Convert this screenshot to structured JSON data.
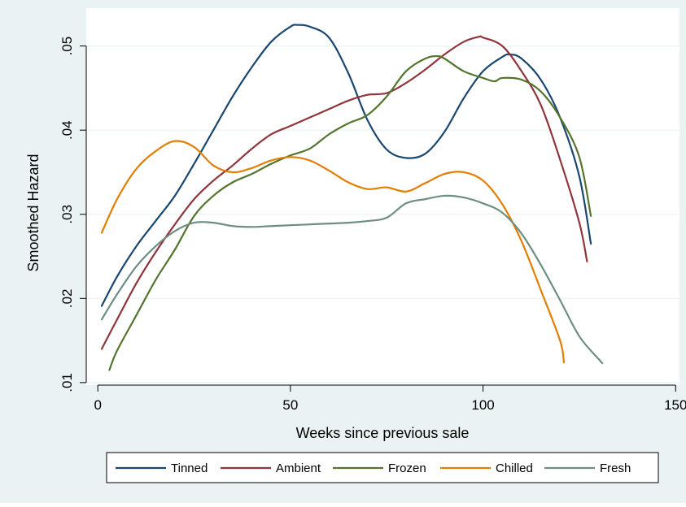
{
  "colors": {
    "outer_background": "#eaf2f3",
    "plot_background": "#ffffff",
    "gridline": "#eaf2f3"
  },
  "chart_data": {
    "type": "line",
    "title": "",
    "xlabel": "Weeks since previous sale",
    "ylabel": "Smoothed Hazard",
    "xlim": [
      -3,
      151
    ],
    "ylim": [
      0.0097,
      0.0545
    ],
    "xticks": [
      0,
      50,
      100,
      150
    ],
    "xtick_labels": [
      "0",
      "50",
      "100",
      "150"
    ],
    "yticks": [
      0.01,
      0.02,
      0.03,
      0.04,
      0.05
    ],
    "ytick_labels": [
      ".01",
      ".02",
      ".03",
      ".04",
      ".05"
    ],
    "grid": true,
    "legend_position": "bottom",
    "series": [
      {
        "name": "Tinned",
        "color": "#1a476f",
        "x": [
          1,
          5,
          10,
          15,
          20,
          25,
          30,
          35,
          40,
          45,
          50,
          52,
          55,
          60,
          65,
          70,
          75,
          80,
          85,
          90,
          95,
          100,
          105,
          107,
          110,
          115,
          120,
          125,
          128
        ],
        "y": [
          0.0191,
          0.0226,
          0.0262,
          0.0292,
          0.0322,
          0.036,
          0.04,
          0.044,
          0.0475,
          0.0505,
          0.0523,
          0.0525,
          0.0523,
          0.051,
          0.0468,
          0.0412,
          0.0377,
          0.0367,
          0.0372,
          0.0398,
          0.0438,
          0.047,
          0.0487,
          0.049,
          0.0485,
          0.046,
          0.0415,
          0.0345,
          0.0265
        ]
      },
      {
        "name": "Ambient",
        "color": "#90353b",
        "x": [
          1,
          5,
          10,
          15,
          20,
          25,
          30,
          35,
          40,
          45,
          50,
          55,
          60,
          65,
          70,
          75,
          80,
          85,
          90,
          95,
          99,
          100,
          105,
          110,
          115,
          120,
          125,
          127
        ],
        "y": [
          0.014,
          0.0175,
          0.0218,
          0.0255,
          0.0288,
          0.0318,
          0.034,
          0.0358,
          0.0378,
          0.0395,
          0.0405,
          0.0415,
          0.0425,
          0.0435,
          0.0442,
          0.0444,
          0.0456,
          0.0472,
          0.049,
          0.0505,
          0.0511,
          0.051,
          0.05,
          0.047,
          0.043,
          0.0365,
          0.029,
          0.0244
        ]
      },
      {
        "name": "Frozen",
        "color": "#55752f",
        "x": [
          3,
          5,
          10,
          15,
          20,
          25,
          30,
          35,
          40,
          45,
          50,
          55,
          60,
          65,
          70,
          75,
          80,
          85,
          88,
          90,
          95,
          100,
          103,
          105,
          110,
          115,
          120,
          125,
          128
        ],
        "y": [
          0.0115,
          0.0138,
          0.018,
          0.0222,
          0.0258,
          0.0298,
          0.0322,
          0.0338,
          0.0348,
          0.036,
          0.037,
          0.0378,
          0.0395,
          0.0408,
          0.0418,
          0.044,
          0.047,
          0.0485,
          0.0488,
          0.0485,
          0.047,
          0.0462,
          0.0458,
          0.0462,
          0.046,
          0.0446,
          0.0415,
          0.0368,
          0.0298
        ]
      },
      {
        "name": "Chilled",
        "color": "#e37e00",
        "x": [
          1,
          5,
          10,
          15,
          20,
          25,
          30,
          35,
          40,
          45,
          50,
          55,
          60,
          65,
          70,
          75,
          80,
          85,
          90,
          95,
          100,
          105,
          110,
          115,
          120,
          121
        ],
        "y": [
          0.0278,
          0.0318,
          0.0354,
          0.0375,
          0.0387,
          0.038,
          0.0358,
          0.035,
          0.0355,
          0.0364,
          0.0368,
          0.0364,
          0.0352,
          0.0338,
          0.033,
          0.0332,
          0.0327,
          0.0337,
          0.0348,
          0.035,
          0.034,
          0.0312,
          0.0268,
          0.021,
          0.015,
          0.0124
        ]
      },
      {
        "name": "Fresh",
        "color": "#6e8e84",
        "x": [
          1,
          5,
          10,
          15,
          20,
          25,
          30,
          35,
          40,
          45,
          50,
          55,
          60,
          65,
          70,
          75,
          80,
          85,
          90,
          95,
          100,
          105,
          110,
          115,
          120,
          125,
          130,
          131
        ],
        "y": [
          0.0175,
          0.0205,
          0.0238,
          0.0262,
          0.028,
          0.029,
          0.029,
          0.0286,
          0.0285,
          0.0286,
          0.0287,
          0.0288,
          0.0289,
          0.029,
          0.0292,
          0.0296,
          0.0313,
          0.0318,
          0.0322,
          0.032,
          0.0313,
          0.0302,
          0.0277,
          0.024,
          0.0198,
          0.0155,
          0.0128,
          0.0123
        ]
      }
    ]
  }
}
